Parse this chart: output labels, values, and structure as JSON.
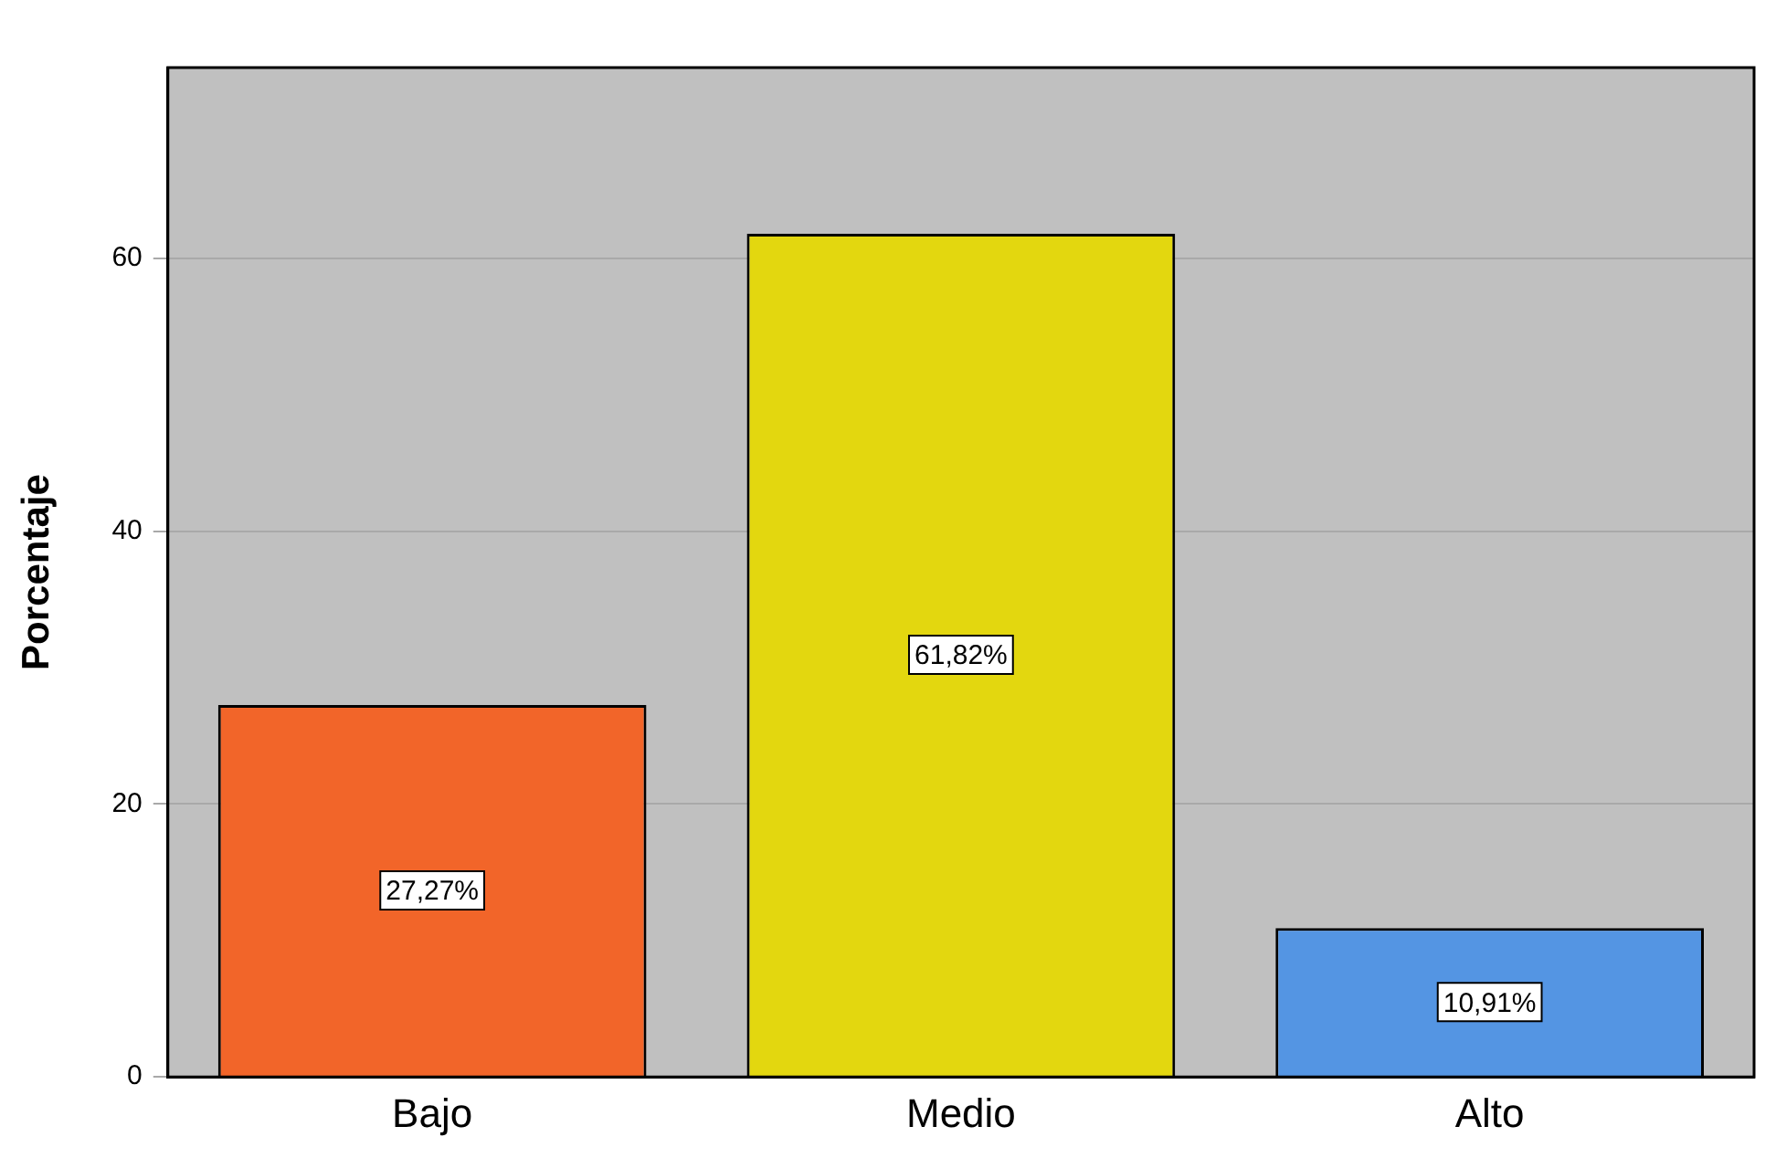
{
  "chart_data": {
    "type": "bar",
    "categories": [
      "Bajo",
      "Medio",
      "Alto"
    ],
    "values": [
      27.27,
      61.82,
      10.91
    ],
    "colors": [
      "#f26529",
      "#e3d70f",
      "#5495e3"
    ],
    "value_labels": [
      "27,27%",
      "61,82%",
      "10,91%"
    ],
    "ylabel": "Porcentaje",
    "ylim": [
      0,
      74
    ],
    "yticks": [
      0,
      20,
      40,
      60
    ],
    "grid": "y",
    "legend": false
  }
}
